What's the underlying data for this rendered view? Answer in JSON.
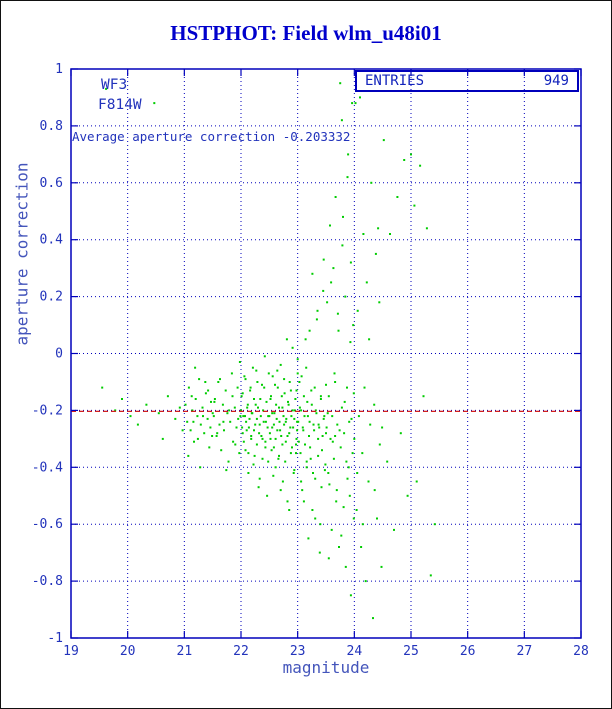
{
  "chart_data": {
    "type": "scatter",
    "title": "HSTPHOT: Field wlm_u48i01",
    "xlabel": "magnitude",
    "ylabel": "aperture correction",
    "xlim": [
      19,
      28
    ],
    "ylim": [
      -1,
      1
    ],
    "x_ticks": [
      19,
      20,
      21,
      22,
      23,
      24,
      25,
      26,
      27,
      28
    ],
    "x_tick_labels": [
      "19",
      "20",
      "21",
      "22",
      "23",
      "24",
      "25",
      "26",
      "27",
      "28"
    ],
    "y_ticks": [
      -1,
      -0.8,
      -0.6,
      -0.4,
      -0.2,
      0,
      0.2,
      0.4,
      0.6,
      0.8,
      1
    ],
    "y_tick_labels": [
      "-1",
      "-0.8",
      "-0.6",
      "-0.4",
      "-0.2",
      "0",
      "0.2",
      "0.4",
      "0.6",
      "0.8",
      "1"
    ],
    "grid": true,
    "legend": {
      "label": "ENTRIES",
      "value": "949",
      "position": "top-right"
    },
    "detector": "WF3",
    "filter": "F814W",
    "annotation": "Average aperture correction -0.203332",
    "average_value": -0.203332,
    "colors": {
      "title": "#0000cc",
      "frame": "#0000bb",
      "grid": "#0000bb",
      "tick_text": "#2233bb",
      "axis_label": "#4455bb",
      "points": "#00cc00",
      "average_line": "#cc0000",
      "legend_text": "#1122bb"
    },
    "points": [
      [
        19.55,
        -0.12
      ],
      [
        19.62,
        0.93
      ],
      [
        19.78,
        -0.2
      ],
      [
        19.9,
        -0.16
      ],
      [
        20.05,
        -0.22
      ],
      [
        20.18,
        -0.25
      ],
      [
        20.33,
        -0.18
      ],
      [
        20.47,
        0.88
      ],
      [
        20.55,
        -0.21
      ],
      [
        20.62,
        -0.3
      ],
      [
        20.71,
        -0.15
      ],
      [
        20.84,
        -0.23
      ],
      [
        20.92,
        -0.19
      ],
      [
        20.97,
        -0.27
      ],
      [
        21.02,
        -0.18
      ],
      [
        21.05,
        -0.24
      ],
      [
        21.08,
        -0.12
      ],
      [
        21.11,
        -0.27
      ],
      [
        21.14,
        -0.2
      ],
      [
        21.17,
        -0.31
      ],
      [
        21.2,
        -0.16
      ],
      [
        21.23,
        -0.22
      ],
      [
        21.26,
        -0.09
      ],
      [
        21.29,
        -0.25
      ],
      [
        21.32,
        -0.19
      ],
      [
        21.35,
        -0.28
      ],
      [
        21.38,
        -0.14
      ],
      [
        21.41,
        -0.23
      ],
      [
        21.44,
        -0.33
      ],
      [
        21.47,
        -0.17
      ],
      [
        21.5,
        -0.21
      ],
      [
        21.07,
        -0.36
      ],
      [
        21.19,
        -0.05
      ],
      [
        21.28,
        -0.4
      ],
      [
        21.37,
        -0.1
      ],
      [
        21.46,
        -0.26
      ],
      [
        21.13,
        -0.15
      ],
      [
        21.24,
        -0.3
      ],
      [
        21.33,
        -0.22
      ],
      [
        21.42,
        -0.13
      ],
      [
        21.49,
        -0.29
      ],
      [
        21.16,
        -0.24
      ],
      [
        21.52,
        -0.22
      ],
      [
        21.54,
        -0.16
      ],
      [
        21.57,
        -0.29
      ],
      [
        21.6,
        -0.1
      ],
      [
        21.62,
        -0.25
      ],
      [
        21.65,
        -0.34
      ],
      [
        21.68,
        -0.18
      ],
      [
        21.7,
        -0.27
      ],
      [
        21.73,
        -0.13
      ],
      [
        21.76,
        -0.21
      ],
      [
        21.78,
        -0.38
      ],
      [
        21.81,
        -0.24
      ],
      [
        21.84,
        -0.07
      ],
      [
        21.86,
        -0.31
      ],
      [
        21.89,
        -0.19
      ],
      [
        21.92,
        -0.26
      ],
      [
        21.94,
        -0.12
      ],
      [
        21.97,
        -0.35
      ],
      [
        21.99,
        -0.22
      ],
      [
        21.53,
        -0.17
      ],
      [
        21.58,
        -0.28
      ],
      [
        21.63,
        -0.09
      ],
      [
        21.69,
        -0.24
      ],
      [
        21.74,
        -0.41
      ],
      [
        21.79,
        -0.2
      ],
      [
        21.85,
        -0.15
      ],
      [
        21.9,
        -0.32
      ],
      [
        21.95,
        -0.23
      ],
      [
        21.98,
        -0.03
      ],
      [
        22.0,
        -0.2
      ],
      [
        22.02,
        -0.26
      ],
      [
        22.03,
        -0.14
      ],
      [
        22.05,
        -0.31
      ],
      [
        22.07,
        -0.22
      ],
      [
        22.08,
        -0.09
      ],
      [
        22.1,
        -0.27
      ],
      [
        22.12,
        -0.18
      ],
      [
        22.13,
        -0.35
      ],
      [
        22.15,
        -0.23
      ],
      [
        22.17,
        -0.12
      ],
      [
        22.18,
        -0.29
      ],
      [
        22.2,
        -0.21
      ],
      [
        22.22,
        -0.39
      ],
      [
        22.23,
        -0.16
      ],
      [
        22.25,
        -0.25
      ],
      [
        22.27,
        -0.06
      ],
      [
        22.28,
        -0.32
      ],
      [
        22.3,
        -0.19
      ],
      [
        22.32,
        -0.28
      ],
      [
        22.33,
        -0.44
      ],
      [
        22.35,
        -0.22
      ],
      [
        22.37,
        -0.11
      ],
      [
        22.38,
        -0.3
      ],
      [
        22.4,
        -0.24
      ],
      [
        22.42,
        -0.01
      ],
      [
        22.43,
        -0.33
      ],
      [
        22.45,
        -0.17
      ],
      [
        22.47,
        -0.26
      ],
      [
        22.48,
        -0.38
      ],
      [
        22.01,
        -0.15
      ],
      [
        22.03,
        -0.28
      ],
      [
        22.04,
        -0.22
      ],
      [
        22.06,
        -0.08
      ],
      [
        22.08,
        -0.34
      ],
      [
        22.09,
        -0.24
      ],
      [
        22.11,
        -0.19
      ],
      [
        22.13,
        -0.42
      ],
      [
        22.14,
        -0.26
      ],
      [
        22.16,
        -0.13
      ],
      [
        22.18,
        -0.3
      ],
      [
        22.19,
        -0.21
      ],
      [
        22.21,
        -0.05
      ],
      [
        22.23,
        -0.27
      ],
      [
        22.24,
        -0.36
      ],
      [
        22.26,
        -0.18
      ],
      [
        22.28,
        -0.23
      ],
      [
        22.29,
        -0.1
      ],
      [
        22.31,
        -0.47
      ],
      [
        22.33,
        -0.25
      ],
      [
        22.34,
        -0.16
      ],
      [
        22.36,
        -0.29
      ],
      [
        22.38,
        -0.37
      ],
      [
        22.39,
        -0.2
      ],
      [
        22.41,
        -0.12
      ],
      [
        22.43,
        -0.31
      ],
      [
        22.44,
        -0.24
      ],
      [
        22.46,
        -0.5
      ],
      [
        22.48,
        -0.22
      ],
      [
        22.49,
        -0.07
      ],
      [
        22.5,
        -0.22
      ],
      [
        22.52,
        -0.3
      ],
      [
        22.53,
        -0.15
      ],
      [
        22.55,
        -0.26
      ],
      [
        22.56,
        -0.08
      ],
      [
        22.58,
        -0.33
      ],
      [
        22.59,
        -0.21
      ],
      [
        22.61,
        -0.4
      ],
      [
        22.62,
        -0.18
      ],
      [
        22.64,
        -0.27
      ],
      [
        22.65,
        -0.12
      ],
      [
        22.67,
        -0.36
      ],
      [
        22.68,
        -0.24
      ],
      [
        22.7,
        -0.04
      ],
      [
        22.71,
        -0.29
      ],
      [
        22.73,
        -0.19
      ],
      [
        22.74,
        -0.45
      ],
      [
        22.76,
        -0.25
      ],
      [
        22.77,
        -0.14
      ],
      [
        22.79,
        -0.31
      ],
      [
        22.8,
        -0.23
      ],
      [
        22.82,
        -0.52
      ],
      [
        22.83,
        -0.17
      ],
      [
        22.85,
        -0.28
      ],
      [
        22.86,
        -0.1
      ],
      [
        22.88,
        -0.35
      ],
      [
        22.89,
        -0.22
      ],
      [
        22.91,
        0.02
      ],
      [
        22.92,
        -0.26
      ],
      [
        22.94,
        -0.41
      ],
      [
        22.95,
        -0.2
      ],
      [
        22.97,
        -0.32
      ],
      [
        22.98,
        -0.13
      ],
      [
        22.99,
        -0.24
      ],
      [
        23.0,
        -0.07
      ],
      [
        22.51,
        -0.28
      ],
      [
        22.52,
        -0.16
      ],
      [
        22.54,
        -0.34
      ],
      [
        22.55,
        -0.21
      ],
      [
        22.57,
        -0.43
      ],
      [
        22.58,
        -0.25
      ],
      [
        22.6,
        -0.11
      ],
      [
        22.61,
        -0.3
      ],
      [
        22.63,
        -0.23
      ],
      [
        22.64,
        -0.06
      ],
      [
        22.66,
        -0.37
      ],
      [
        22.67,
        -0.19
      ],
      [
        22.69,
        -0.27
      ],
      [
        22.7,
        -0.48
      ],
      [
        22.72,
        -0.15
      ],
      [
        22.73,
        -0.32
      ],
      [
        22.75,
        -0.22
      ],
      [
        22.76,
        -0.09
      ],
      [
        22.78,
        -0.38
      ],
      [
        22.79,
        -0.24
      ],
      [
        22.81,
        0.05
      ],
      [
        22.82,
        -0.29
      ],
      [
        22.84,
        -0.18
      ],
      [
        22.85,
        -0.55
      ],
      [
        22.87,
        -0.26
      ],
      [
        22.88,
        -0.13
      ],
      [
        22.9,
        -0.33
      ],
      [
        22.91,
        -0.2
      ],
      [
        22.93,
        -0.42
      ],
      [
        22.94,
        -0.23
      ],
      [
        22.96,
        -0.16
      ],
      [
        22.97,
        -0.35
      ],
      [
        22.99,
        -0.27
      ],
      [
        23.0,
        -0.02
      ],
      [
        22.98,
        -0.3
      ],
      [
        23.01,
        -0.24
      ],
      [
        23.03,
        -0.1
      ],
      [
        23.05,
        -0.35
      ],
      [
        23.06,
        -0.2
      ],
      [
        23.08,
        -0.48
      ],
      [
        23.1,
        -0.27
      ],
      [
        23.11,
        -0.15
      ],
      [
        23.13,
        -0.32
      ],
      [
        23.15,
        -0.05
      ],
      [
        23.16,
        -0.4
      ],
      [
        23.18,
        -0.22
      ],
      [
        23.2,
        -0.29
      ],
      [
        23.21,
        0.08
      ],
      [
        23.23,
        -0.37
      ],
      [
        23.25,
        -0.18
      ],
      [
        23.26,
        -0.55
      ],
      [
        23.28,
        -0.25
      ],
      [
        23.3,
        -0.12
      ],
      [
        23.31,
        -0.44
      ],
      [
        23.33,
        -0.21
      ],
      [
        23.35,
        0.15
      ],
      [
        23.36,
        -0.3
      ],
      [
        23.38,
        -0.26
      ],
      [
        23.4,
        -0.6
      ],
      [
        23.41,
        -0.16
      ],
      [
        23.43,
        -0.34
      ],
      [
        23.45,
        0.22
      ],
      [
        23.46,
        -0.23
      ],
      [
        23.48,
        -0.41
      ],
      [
        23.5,
        -0.28
      ],
      [
        23.02,
        -0.31
      ],
      [
        23.04,
        -0.19
      ],
      [
        23.06,
        -0.45
      ],
      [
        23.07,
        -0.08
      ],
      [
        23.09,
        -0.26
      ],
      [
        23.11,
        -0.52
      ],
      [
        23.12,
        -0.22
      ],
      [
        23.14,
        0.05
      ],
      [
        23.16,
        -0.38
      ],
      [
        23.17,
        -0.17
      ],
      [
        23.19,
        -0.65
      ],
      [
        23.21,
        -0.24
      ],
      [
        23.22,
        -0.33
      ],
      [
        23.24,
        -0.13
      ],
      [
        23.26,
        0.28
      ],
      [
        23.27,
        -0.42
      ],
      [
        23.29,
        -0.27
      ],
      [
        23.31,
        -0.58
      ],
      [
        23.32,
        -0.2
      ],
      [
        23.34,
        0.12
      ],
      [
        23.36,
        -0.36
      ],
      [
        23.37,
        -0.25
      ],
      [
        23.39,
        -0.7
      ],
      [
        23.41,
        -0.15
      ],
      [
        23.42,
        -0.47
      ],
      [
        23.44,
        -0.29
      ],
      [
        23.46,
        0.33
      ],
      [
        23.47,
        -0.22
      ],
      [
        23.49,
        -0.39
      ],
      [
        23.5,
        -0.11
      ],
      [
        23.51,
        -0.26
      ],
      [
        23.52,
        0.18
      ],
      [
        23.54,
        -0.42
      ],
      [
        23.55,
        -0.15
      ],
      [
        23.57,
        0.45
      ],
      [
        23.58,
        -0.3
      ],
      [
        23.6,
        -0.62
      ],
      [
        23.61,
        -0.22
      ],
      [
        23.63,
        0.3
      ],
      [
        23.64,
        -0.37
      ],
      [
        23.66,
        -0.1
      ],
      [
        23.67,
        0.55
      ],
      [
        23.69,
        -0.48
      ],
      [
        23.7,
        -0.25
      ],
      [
        23.72,
        0.08
      ],
      [
        23.73,
        -0.68
      ],
      [
        23.75,
        0.95
      ],
      [
        23.76,
        -0.33
      ],
      [
        23.78,
        -0.19
      ],
      [
        23.79,
        0.38
      ],
      [
        23.81,
        -0.54
      ],
      [
        23.82,
        -0.28
      ],
      [
        23.84,
        0.2
      ],
      [
        23.85,
        -0.75
      ],
      [
        23.87,
        -0.12
      ],
      [
        23.88,
        0.62
      ],
      [
        23.9,
        -0.4
      ],
      [
        23.91,
        -0.24
      ],
      [
        23.93,
        0.04
      ],
      [
        23.94,
        -0.85
      ],
      [
        23.96,
        0.88
      ],
      [
        23.97,
        -0.35
      ],
      [
        23.99,
        -0.58
      ],
      [
        23.53,
        -0.21
      ],
      [
        23.56,
        -0.46
      ],
      [
        23.59,
        0.25
      ],
      [
        23.62,
        -0.31
      ],
      [
        23.65,
        -0.07
      ],
      [
        23.68,
        -0.52
      ],
      [
        23.71,
        0.14
      ],
      [
        23.74,
        -0.27
      ],
      [
        23.77,
        -0.64
      ],
      [
        23.8,
        0.48
      ],
      [
        23.83,
        -0.17
      ],
      [
        23.86,
        -0.38
      ],
      [
        23.89,
        0.7
      ],
      [
        23.92,
        -0.5
      ],
      [
        23.95,
        -0.23
      ],
      [
        23.98,
        0.1
      ],
      [
        23.55,
        -0.72
      ],
      [
        23.66,
        -0.29
      ],
      [
        23.78,
        0.82
      ],
      [
        23.88,
        -0.44
      ],
      [
        23.94,
        0.32
      ],
      [
        23.99,
        -0.14
      ],
      [
        24.0,
        -0.3
      ],
      [
        24.02,
        0.88
      ],
      [
        24.04,
        -0.55
      ],
      [
        24.06,
        0.15
      ],
      [
        24.08,
        -0.22
      ],
      [
        24.1,
        0.9
      ],
      [
        24.12,
        -0.68
      ],
      [
        24.14,
        -0.35
      ],
      [
        24.16,
        0.42
      ],
      [
        24.18,
        -0.12
      ],
      [
        24.2,
        -0.8
      ],
      [
        24.22,
        0.25
      ],
      [
        24.25,
        -0.45
      ],
      [
        24.28,
        -0.25
      ],
      [
        24.3,
        0.6
      ],
      [
        24.33,
        -0.93
      ],
      [
        24.35,
        -0.18
      ],
      [
        24.38,
        0.35
      ],
      [
        24.4,
        -0.58
      ],
      [
        24.42,
        0.44
      ],
      [
        24.45,
        -0.32
      ],
      [
        24.48,
        -0.75
      ],
      [
        24.05,
        -0.42
      ],
      [
        24.15,
        -0.6
      ],
      [
        24.26,
        0.05
      ],
      [
        24.36,
        -0.48
      ],
      [
        24.44,
        0.18
      ],
      [
        24.49,
        -0.26
      ],
      [
        24.52,
        0.75
      ],
      [
        24.58,
        -0.38
      ],
      [
        24.63,
        0.42
      ],
      [
        24.7,
        -0.62
      ],
      [
        24.76,
        0.55
      ],
      [
        24.82,
        -0.28
      ],
      [
        24.88,
        0.68
      ],
      [
        24.94,
        -0.5
      ],
      [
        25.0,
        0.7
      ],
      [
        25.06,
        0.52
      ],
      [
        25.1,
        -0.45
      ],
      [
        25.16,
        0.66
      ],
      [
        25.22,
        -0.15
      ],
      [
        25.28,
        0.44
      ],
      [
        25.35,
        -0.78
      ],
      [
        25.42,
        -0.6
      ]
    ]
  }
}
